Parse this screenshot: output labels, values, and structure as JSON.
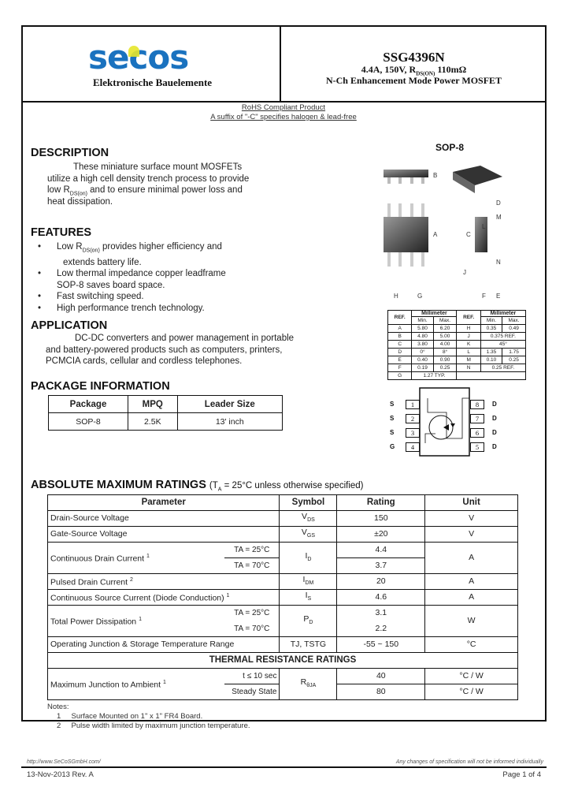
{
  "header": {
    "logo": "secos",
    "logo_sub": "Elektronische Bauelemente",
    "part": "SSG4396N",
    "spec_prefix": "4.4A, 150V, R",
    "spec_sub": "DS(ON)",
    "spec_suffix": " 110mΩ",
    "desc": "N-Ch Enhancement Mode Power MOSFET",
    "brand_color": "#1a72bf",
    "accent": "#e6e62a"
  },
  "rohs": {
    "line1": "RoHS Compliant Product",
    "line2": "A suffix of \"-C\" specifies halogen & lead-free"
  },
  "description": {
    "title": "DESCRIPTION",
    "l1": "These miniature surface mount MOSFETs",
    "l2": "utilize a high cell density trench process to provide",
    "l3a": "low R",
    "l3sub": "DS(on)",
    "l3b": " and to ensure minimal power loss and",
    "l4": "heat dissipation."
  },
  "features": {
    "title": "FEATURES",
    "f1a": "Low R",
    "f1sub": "DS(on)",
    "f1b": " provides higher efficiency and",
    "f1c": "extends battery life.",
    "f2a": "Low thermal impedance copper leadframe",
    "f2b": "SOP-8 saves board space.",
    "f3": "Fast switching speed.",
    "f4": "High performance trench technology."
  },
  "application": {
    "title": "APPLICATION",
    "l1": "DC-DC converters and power management in portable",
    "l2": "and battery-powered products such as computers, printers,",
    "l3": "PCMCIA cards, cellular and cordless telephones."
  },
  "package_info": {
    "title": "PACKAGE INFORMATION",
    "headers": [
      "Package",
      "MPQ",
      "Leader Size"
    ],
    "row": [
      "SOP-8",
      "2.5K",
      "13' inch"
    ]
  },
  "drawing": {
    "title": "SOP-8",
    "labels": [
      "A",
      "B",
      "C",
      "D",
      "E",
      "F",
      "G",
      "H",
      "J",
      "L",
      "M",
      "N"
    ]
  },
  "dimensions": {
    "headers": [
      "REF.",
      "Millimeter",
      "REF.",
      "Millimeter"
    ],
    "sub": [
      "Min.",
      "Max.",
      "Min.",
      "Max."
    ],
    "rows": [
      [
        "A",
        "5.80",
        "6.20",
        "H",
        "0.35",
        "0.49"
      ],
      [
        "B",
        "4.80",
        "5.00",
        "J",
        "0.375 REF.",
        ""
      ],
      [
        "C",
        "3.80",
        "4.00",
        "K",
        "45°",
        ""
      ],
      [
        "D",
        "0°",
        "8°",
        "L",
        "1.35",
        "1.75"
      ],
      [
        "E",
        "0.40",
        "0.90",
        "M",
        "0.10",
        "0.25"
      ],
      [
        "F",
        "0.19",
        "0.25",
        "N",
        "0.25 REF.",
        ""
      ],
      [
        "G",
        "1.27 TYP.",
        "",
        "",
        "",
        ""
      ]
    ]
  },
  "pinout": {
    "left": [
      {
        "n": "1",
        "s": "S"
      },
      {
        "n": "2",
        "s": "S"
      },
      {
        "n": "3",
        "s": "S"
      },
      {
        "n": "4",
        "s": "G"
      }
    ],
    "right": [
      {
        "n": "8",
        "s": "D"
      },
      {
        "n": "7",
        "s": "D"
      },
      {
        "n": "6",
        "s": "D"
      },
      {
        "n": "5",
        "s": "D"
      }
    ]
  },
  "abs_max": {
    "title": "ABSOLUTE MAXIMUM RATINGS",
    "cond": "(T",
    "cond_sub": "A",
    "cond_rest": " = 25°C unless otherwise specified)",
    "headers": [
      "Parameter",
      "Symbol",
      "Rating",
      "Unit"
    ],
    "vds": [
      "Drain-Source Voltage",
      "V",
      "DS",
      "150",
      "V"
    ],
    "vgs": [
      "Gate-Source Voltage",
      "V",
      "GS",
      "±20",
      "V"
    ],
    "id": {
      "p": "Continuous Drain Current",
      "sup": "1",
      "c1": "TA = 25°C",
      "c2": "TA = 70°C",
      "sym": "I",
      "sub": "D",
      "r1": "4.4",
      "r2": "3.7",
      "u": "A"
    },
    "idm": [
      "Pulsed Drain Current",
      "2",
      "I",
      "DM",
      "20",
      "A"
    ],
    "is": [
      "Continuous Source Current (Diode Conduction)",
      "1",
      "I",
      "S",
      "4.6",
      "A"
    ],
    "pd": {
      "p": "Total Power Dissipation",
      "sup": "1",
      "c1": "TA = 25°C",
      "c2": "TA = 70°C",
      "sym": "P",
      "sub": "D",
      "r1": "3.1",
      "r2": "2.2",
      "u": "W"
    },
    "tj": [
      "Operating Junction & Storage Temperature Range",
      "TJ, TSTG",
      "-55 ~ 150",
      "°C"
    ]
  },
  "thermal": {
    "title": "THERMAL RESISTANCE RATINGS",
    "p": "Maximum Junction to Ambient",
    "sup": "1",
    "c1": "t ≤ 10 sec",
    "c2": "Steady State",
    "sym": "R",
    "sub": "θJA",
    "r1": "40",
    "r2": "80",
    "u1": "°C / W",
    "u2": "°C / W"
  },
  "notes": {
    "title": "Notes:",
    "n1": "1     Surface Mounted on 1\" x 1\" FR4 Board.",
    "n2": "2     Pulse width limited by maximum junction temperature."
  },
  "footer": {
    "url": "http://www.SeCoSGmbH.com/",
    "disclaimer": "Any changes of specification will not be informed individually",
    "date": "13-Nov-2013 Rev. A",
    "page": "Page 1 of 4"
  }
}
